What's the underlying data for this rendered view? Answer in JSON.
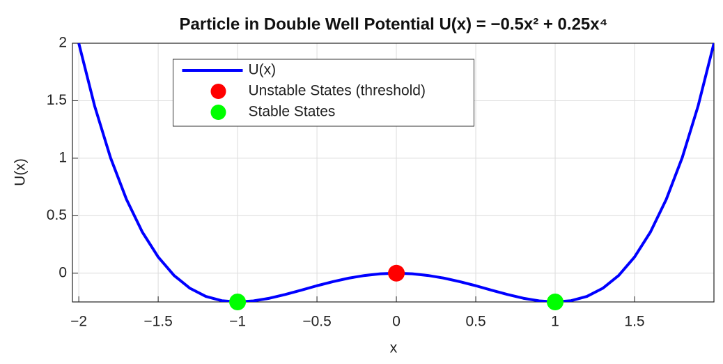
{
  "chart_data": {
    "type": "line",
    "title": "Particle in Double Well Potential U(x) = −0.5x² + 0.25x⁴",
    "x_label": "x",
    "y_label": "U(x)",
    "xlim": [
      -2.04,
      2
    ],
    "ylim": [
      -0.25,
      2
    ],
    "xticks": [
      {
        "value": -2,
        "label": "−2"
      },
      {
        "value": -1.5,
        "label": "−1.5"
      },
      {
        "value": -1,
        "label": "−1"
      },
      {
        "value": -0.5,
        "label": "−0.5"
      },
      0,
      0.5,
      1,
      1.5
    ],
    "yticks": [
      0,
      0.5,
      1,
      1.5,
      2
    ],
    "grid": true,
    "legend": "north",
    "series": [
      {
        "name": "U(x)",
        "type": "line",
        "color": "#0000ff",
        "x": [
          -2,
          -1.9,
          -1.8,
          -1.7,
          -1.6,
          -1.5,
          -1.4,
          -1.3,
          -1.2,
          -1.1,
          -1,
          -0.9,
          -0.8,
          -0.7,
          -0.6,
          -0.5,
          -0.4,
          -0.3,
          -0.2,
          -0.1,
          0,
          0.1,
          0.2,
          0.3,
          0.4,
          0.5,
          0.6,
          0.7,
          0.8,
          0.9,
          1,
          1.1,
          1.2,
          1.3,
          1.4,
          1.5,
          1.6,
          1.7,
          1.8,
          1.9,
          2
        ],
        "values": [
          2,
          1.453,
          1.004,
          0.643,
          0.358,
          0.141,
          -0.02,
          -0.131,
          -0.202,
          -0.239,
          -0.25,
          -0.241,
          -0.218,
          -0.185,
          -0.148,
          -0.109,
          -0.074,
          -0.043,
          -0.02,
          -0.005,
          0,
          -0.005,
          -0.02,
          -0.043,
          -0.074,
          -0.109,
          -0.148,
          -0.185,
          -0.218,
          -0.241,
          -0.25,
          -0.239,
          -0.202,
          -0.131,
          -0.02,
          0.141,
          0.358,
          0.643,
          1.004,
          1.453,
          2
        ]
      },
      {
        "name": "Unstable States (threshold)",
        "type": "scatter",
        "color": "#ff0000",
        "x": [
          0
        ],
        "values": [
          0
        ]
      },
      {
        "name": "Stable States",
        "type": "scatter",
        "color": "#00ff00",
        "x": [
          -1,
          1
        ],
        "values": [
          -0.25,
          -0.25
        ]
      }
    ]
  }
}
